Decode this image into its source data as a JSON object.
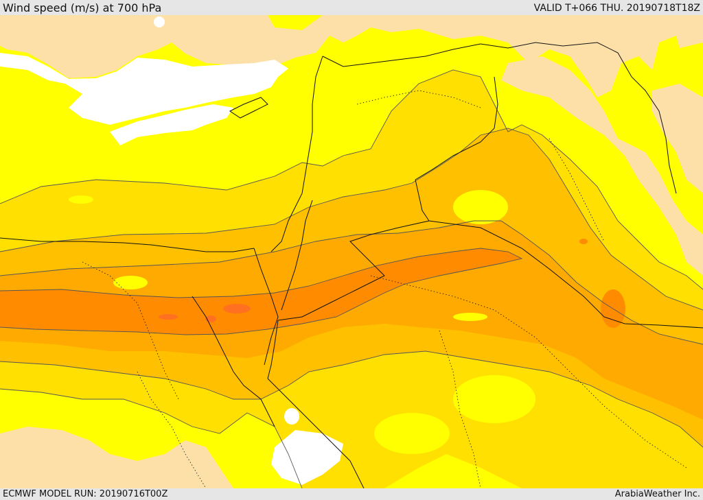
{
  "header": {
    "title": "Wind speed (m/s) at 700 hPa",
    "valid": "VALID T+066 THU. 20190718T18Z"
  },
  "footer": {
    "model_run": "ECMWF MODEL RUN: 20190716T00Z",
    "credit": "ArabiaWeather Inc."
  },
  "map": {
    "shading_colors": {
      "lowest": "#fde0a8",
      "low": "#ffff00",
      "moderate": "#ffe000",
      "elevated": "#ffc000",
      "high": "#ffaa00",
      "very_high": "#ff8c00",
      "peak": "#ff7020",
      "sea": "#ffffff"
    },
    "line_colors": {
      "contour": "#555555",
      "border": "#111111"
    }
  }
}
